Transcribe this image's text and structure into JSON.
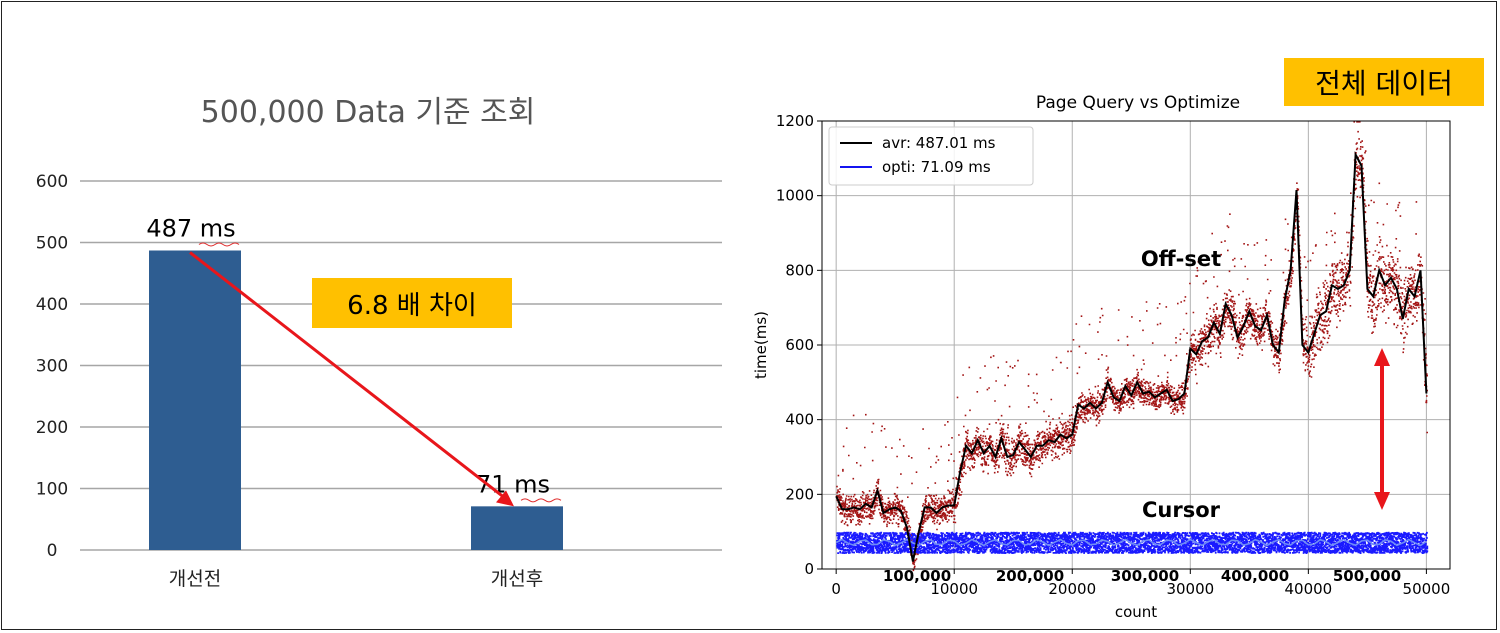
{
  "colors": {
    "bar": "#2e5d91",
    "arrow": "#e8161b",
    "callout": "#ffc000",
    "avr_line": "#000000",
    "opti_line": "#1414f0",
    "offset_points": "#a31515",
    "cursor_points": "#1a1aff"
  },
  "callouts": {
    "difference": "6.8 배 차이",
    "total": "전체 데이터"
  },
  "chart_data": [
    {
      "type": "bar",
      "title": "500,000  Data 기준 조회",
      "categories": [
        "개선전",
        "개선후"
      ],
      "values": [
        487,
        71
      ],
      "data_labels": [
        "487 ms",
        "71 ms"
      ],
      "ylim": [
        0,
        600
      ],
      "yticks": [
        "0",
        "100",
        "200",
        "300",
        "400",
        "500",
        "600"
      ],
      "grid": true,
      "annotations": [
        {
          "text": "6.8 배 차이",
          "type": "arrow",
          "from": "개선전",
          "to": "개선후"
        }
      ]
    },
    {
      "type": "line",
      "title": "Page Query vs Optimize",
      "xlabel": "count",
      "ylabel": "time(ms)",
      "xlim": [
        -1200,
        52000
      ],
      "ylim": [
        0,
        1200
      ],
      "xticks": [
        "0",
        "10000",
        "20000",
        "30000",
        "40000",
        "50000"
      ],
      "yticks": [
        "0",
        "200",
        "400",
        "600",
        "800",
        "1000",
        "1200"
      ],
      "grid": true,
      "legend_position": "top-left",
      "segment_labels": [
        "100,000",
        "200,000",
        "300,000",
        "400,000",
        "500,000"
      ],
      "annotations": [
        "Off-set",
        "Cursor"
      ],
      "series": [
        {
          "name": "avr: 487.01 ms",
          "x": [
            0,
            500,
            1000,
            1500,
            2000,
            2500,
            3000,
            3500,
            4000,
            4500,
            5000,
            5500,
            6000,
            6500,
            7000,
            7500,
            8000,
            8500,
            9000,
            9500,
            10000,
            10500,
            11000,
            11500,
            12000,
            12500,
            13000,
            13500,
            14000,
            14500,
            15000,
            15500,
            16000,
            16500,
            17000,
            17500,
            18000,
            18500,
            19000,
            19500,
            20000,
            20500,
            21000,
            21500,
            22000,
            22500,
            23000,
            23500,
            24000,
            24500,
            25000,
            25500,
            26000,
            26500,
            27000,
            27500,
            28000,
            28500,
            29000,
            29500,
            30000,
            30500,
            31000,
            31500,
            32000,
            32500,
            33000,
            33500,
            34000,
            34500,
            35000,
            35500,
            36000,
            36500,
            37000,
            37500,
            38000,
            38500,
            39000,
            39500,
            40000,
            40500,
            41000,
            41500,
            42000,
            42500,
            43000,
            43500,
            44000,
            44500,
            45000,
            45500,
            46000,
            46500,
            47000,
            47500,
            48000,
            48500,
            49000,
            49500,
            50000
          ],
          "y": [
            195,
            160,
            160,
            165,
            160,
            175,
            165,
            210,
            150,
            160,
            165,
            155,
            110,
            20,
            100,
            165,
            165,
            150,
            165,
            170,
            170,
            260,
            330,
            310,
            345,
            310,
            330,
            300,
            350,
            300,
            305,
            340,
            320,
            300,
            330,
            330,
            345,
            340,
            360,
            350,
            360,
            440,
            430,
            445,
            430,
            445,
            500,
            460,
            450,
            490,
            465,
            500,
            470,
            475,
            460,
            470,
            480,
            450,
            455,
            470,
            590,
            575,
            610,
            620,
            660,
            630,
            710,
            680,
            620,
            650,
            690,
            650,
            640,
            680,
            600,
            580,
            720,
            800,
            1015,
            600,
            580,
            630,
            680,
            690,
            760,
            750,
            760,
            800,
            1110,
            1080,
            750,
            730,
            800,
            760,
            780,
            750,
            670,
            750,
            730,
            800,
            470
          ],
          "color": "#000000"
        },
        {
          "name": "opti: 71.09 ms",
          "y_mean": 71.09,
          "y_range": [
            45,
            100
          ],
          "color": "#1414f0"
        }
      ]
    }
  ]
}
